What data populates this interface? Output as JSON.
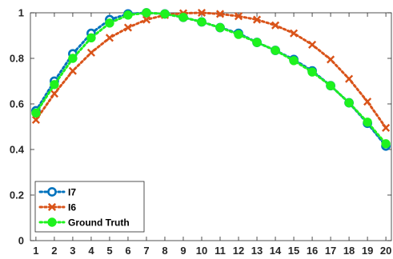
{
  "chart_data": {
    "type": "line",
    "title": "",
    "xlabel": "",
    "ylabel": "",
    "x": [
      1,
      2,
      3,
      4,
      5,
      6,
      7,
      8,
      9,
      10,
      11,
      12,
      13,
      14,
      15,
      16,
      17,
      18,
      19,
      20
    ],
    "xlim": [
      0.7,
      20.3
    ],
    "ylim": [
      0,
      1
    ],
    "yticks": [
      0,
      0.2,
      0.4,
      0.6,
      0.8,
      1
    ],
    "ytick_labels": [
      "0",
      "0.2",
      "0.4",
      "0.6",
      "0.8",
      "1"
    ],
    "grid": false,
    "legend_position": "bottom-left",
    "series": [
      {
        "name": "I7",
        "color": "#0072BD",
        "marker": "circle",
        "values": [
          0.57,
          0.7,
          0.82,
          0.91,
          0.97,
          0.995,
          1.0,
          0.995,
          0.98,
          0.96,
          0.935,
          0.91,
          0.87,
          0.835,
          0.795,
          0.745,
          0.68,
          0.605,
          0.515,
          0.415
        ]
      },
      {
        "name": "I6",
        "color": "#D95319",
        "marker": "x",
        "values": [
          0.53,
          0.645,
          0.745,
          0.825,
          0.89,
          0.935,
          0.97,
          0.99,
          0.998,
          1.0,
          0.995,
          0.985,
          0.97,
          0.945,
          0.91,
          0.86,
          0.795,
          0.71,
          0.61,
          0.495
        ]
      },
      {
        "name": "Ground Truth",
        "color": "#1EF21E",
        "marker": "filled-circle",
        "values": [
          0.56,
          0.685,
          0.8,
          0.89,
          0.955,
          0.99,
          1.0,
          0.995,
          0.98,
          0.96,
          0.935,
          0.905,
          0.87,
          0.835,
          0.79,
          0.74,
          0.68,
          0.605,
          0.52,
          0.425
        ]
      }
    ]
  }
}
